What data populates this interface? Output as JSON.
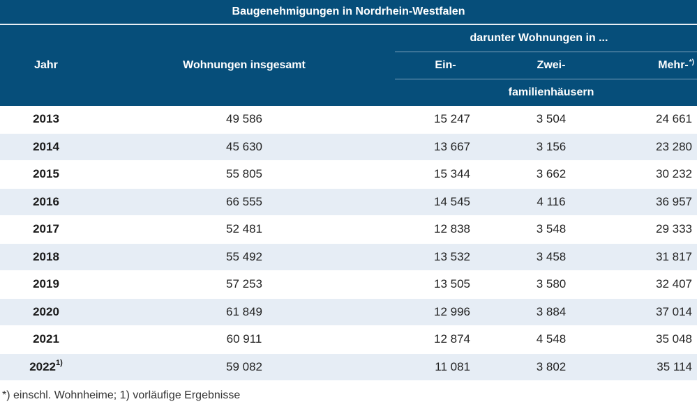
{
  "title": "Baugenehmigungen in Nordrhein-Westfalen",
  "header": {
    "jahr": "Jahr",
    "insgesamt": "Wohnungen insgesamt",
    "darunter": "darunter Wohnungen in ...",
    "ein": "Ein-",
    "zwei": "Zwei-",
    "mehr": "Mehr-",
    "mehr_note": "*)",
    "familien": "familienhäusern"
  },
  "rows": [
    {
      "jahr": "2013",
      "note": "",
      "insgesamt": "49 586",
      "ein": "15 247",
      "zwei": "3 504",
      "mehr": "24 661"
    },
    {
      "jahr": "2014",
      "note": "",
      "insgesamt": "45 630",
      "ein": "13 667",
      "zwei": "3 156",
      "mehr": "23 280"
    },
    {
      "jahr": "2015",
      "note": "",
      "insgesamt": "55 805",
      "ein": "15 344",
      "zwei": "3 662",
      "mehr": "30 232"
    },
    {
      "jahr": "2016",
      "note": "",
      "insgesamt": "66 555",
      "ein": "14 545",
      "zwei": "4 116",
      "mehr": "36 957"
    },
    {
      "jahr": "2017",
      "note": "",
      "insgesamt": "52 481",
      "ein": "12 838",
      "zwei": "3 548",
      "mehr": "29 333"
    },
    {
      "jahr": "2018",
      "note": "",
      "insgesamt": "55 492",
      "ein": "13 532",
      "zwei": "3 458",
      "mehr": "31 817"
    },
    {
      "jahr": "2019",
      "note": "",
      "insgesamt": "57 253",
      "ein": "13 505",
      "zwei": "3 580",
      "mehr": "32 407"
    },
    {
      "jahr": "2020",
      "note": "",
      "insgesamt": "61 849",
      "ein": "12 996",
      "zwei": "3 884",
      "mehr": "37 014"
    },
    {
      "jahr": "2021",
      "note": "",
      "insgesamt": "60 911",
      "ein": "12 874",
      "zwei": "4 548",
      "mehr": "35 048"
    },
    {
      "jahr": "2022",
      "note": "1)",
      "insgesamt": "59 082",
      "ein": "11 081",
      "zwei": "3 802",
      "mehr": "35 114"
    }
  ],
  "footnote": "*) einschl. Wohnheime; 1) vorläufige Ergebnisse",
  "colors": {
    "header_bg": "#064e7a",
    "stripe": "#e6edf5"
  }
}
